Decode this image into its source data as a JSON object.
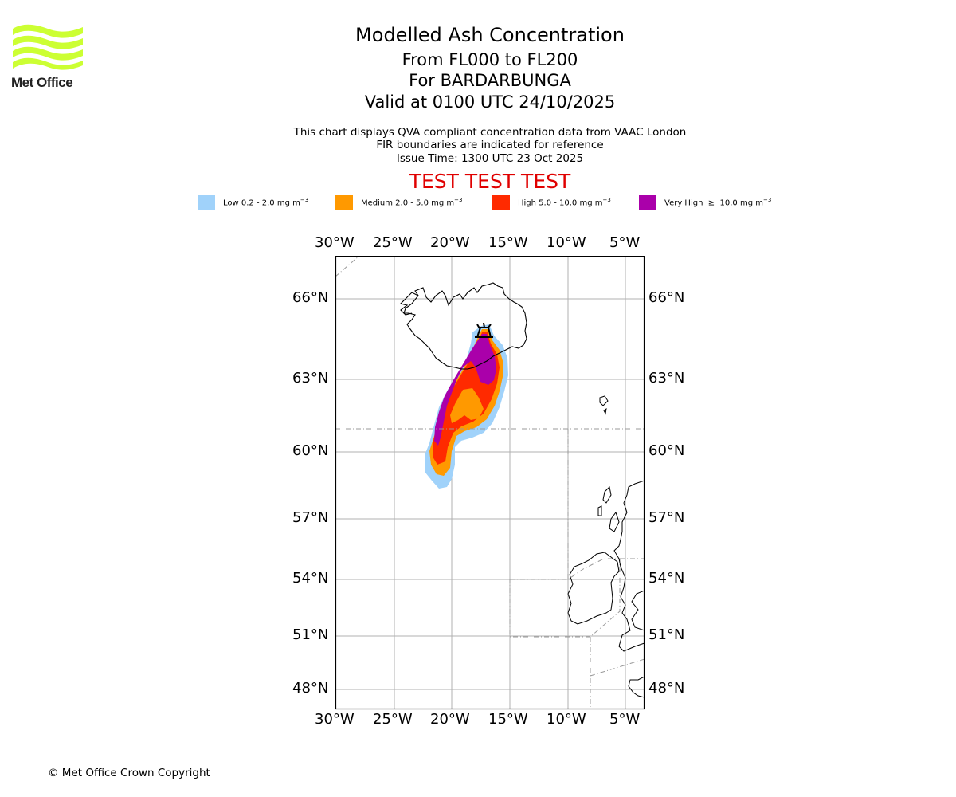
{
  "logo": {
    "text": "Met Office",
    "color": "#ccff33"
  },
  "header": {
    "title": "Modelled Ash Concentration",
    "levels": "From FL000 to FL200",
    "volcano": "For BARDARBUNGA",
    "valid": "Valid at 0100 UTC 24/10/2025"
  },
  "subtitle": {
    "line1": "This chart displays QVA compliant concentration data from VAAC London",
    "line2": "FIR boundaries are indicated for reference",
    "issue": "Issue Time: 1300 UTC 23 Oct 2025"
  },
  "test_banner": "TEST TEST TEST",
  "legend": [
    {
      "label": "Low 0.2 - 2.0 mg m",
      "sup": "−3",
      "color": "#a0d2fa"
    },
    {
      "label": "Medium 2.0 - 5.0 mg m",
      "sup": "−3",
      "color": "#ff9900"
    },
    {
      "label": "High 5.0 - 10.0 mg m",
      "sup": "−3",
      "color": "#ff2a00"
    },
    {
      "label": "Very High  ≥  10.0 mg m",
      "sup": "−3",
      "color": "#aa00aa"
    }
  ],
  "map": {
    "lon_ticks": [
      "30°W",
      "25°W",
      "20°W",
      "15°W",
      "10°W",
      "5°W"
    ],
    "lat_ticks": [
      "66°N",
      "63°N",
      "60°N",
      "57°N",
      "54°N",
      "51°N",
      "48°N"
    ],
    "volcano_icon": "volcano-icon"
  },
  "footer": "© Met Office Crown Copyright"
}
